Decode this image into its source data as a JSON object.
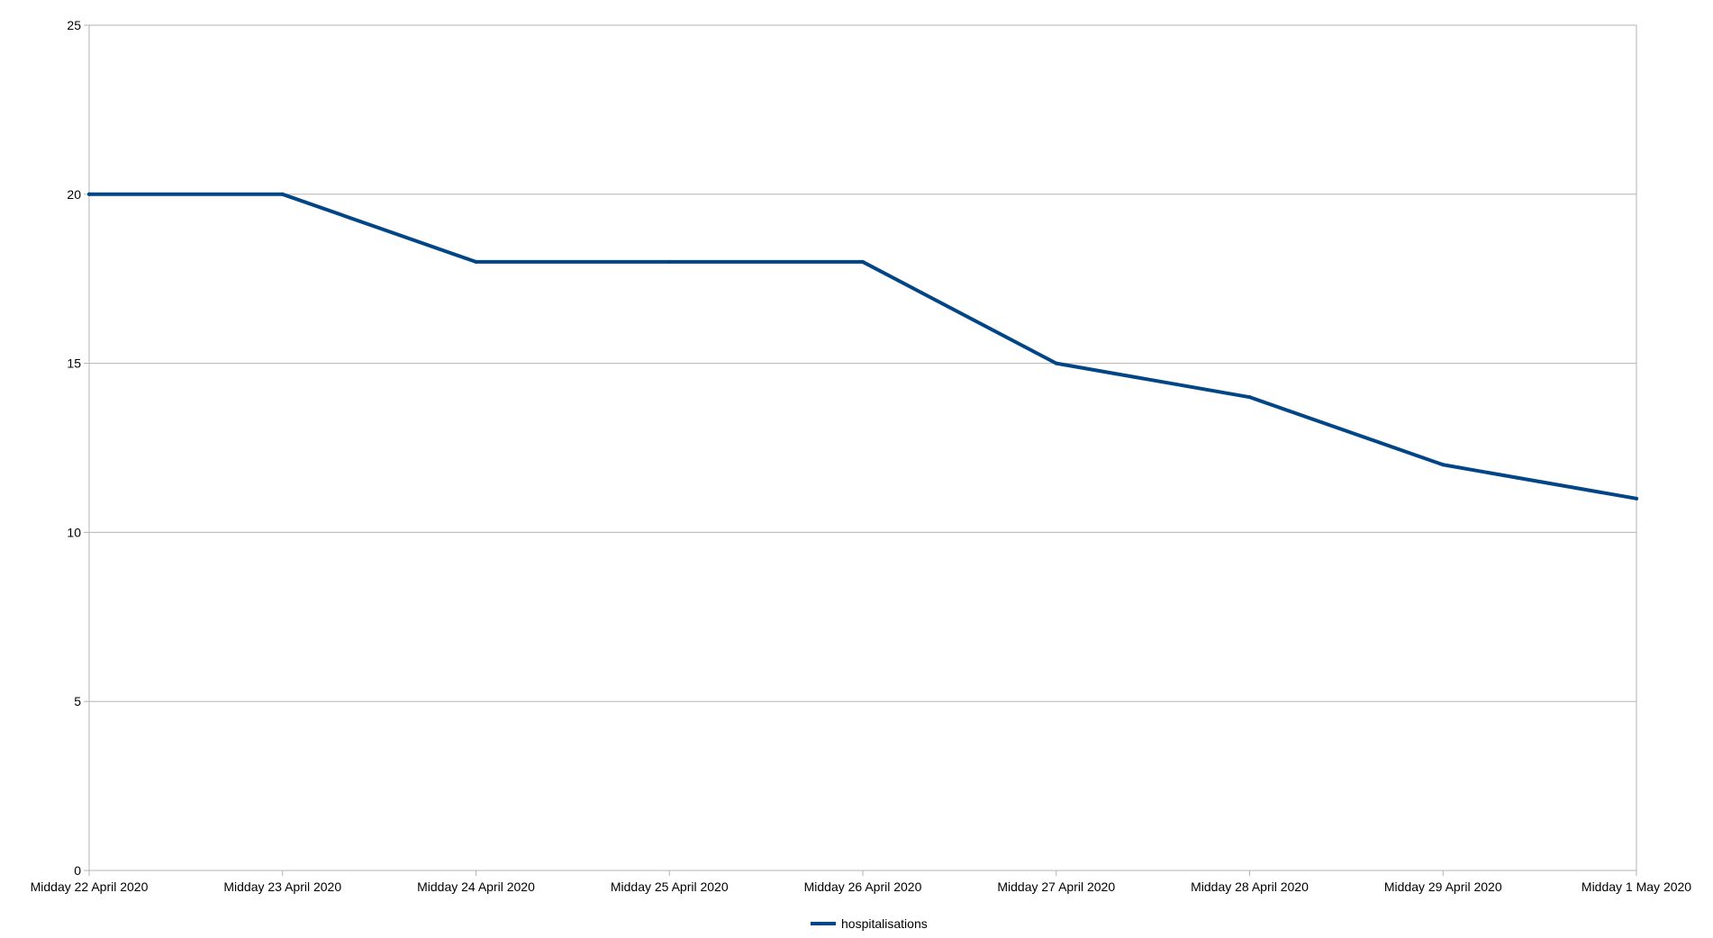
{
  "chart_data": {
    "type": "line",
    "title": "",
    "xlabel": "",
    "ylabel": "",
    "categories": [
      "Midday 22 April 2020",
      "Midday 23 April 2020",
      "Midday 24 April 2020",
      "Midday 25 April 2020",
      "Midday 26 April 2020",
      "Midday 27 April 2020",
      "Midday 28 April 2020",
      "Midday 29 April 2020",
      "Midday 1 May 2020"
    ],
    "series": [
      {
        "name": "hospitalisations",
        "values": [
          20,
          20,
          18,
          18,
          18,
          15,
          14,
          12,
          11
        ],
        "color": "#004586"
      }
    ],
    "ylim": [
      0,
      25
    ],
    "yticks": [
      0,
      5,
      10,
      15,
      20,
      25
    ],
    "grid": "horizontal",
    "legend": "bottom-center",
    "colors": {
      "grid": "#b3b3b3",
      "axis": "#b3b3b3",
      "line": "#004586"
    }
  }
}
